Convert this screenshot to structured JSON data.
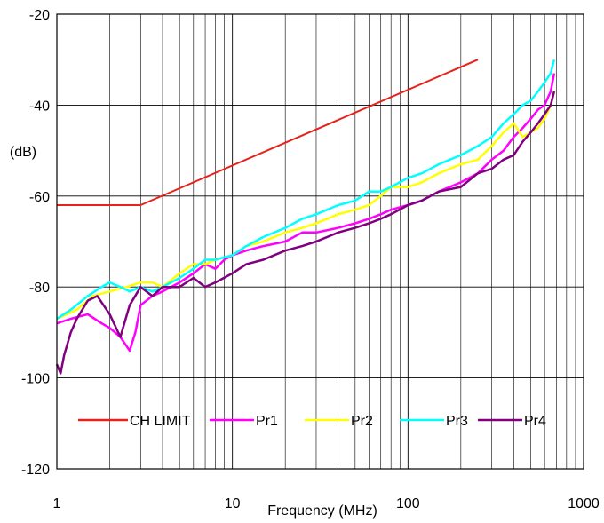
{
  "chart_data": {
    "type": "line",
    "xscale": "log",
    "xlim": [
      1,
      1000
    ],
    "ylim": [
      -120,
      -20
    ],
    "xlabel": "Frequency (MHz)",
    "ylabel": "(dB)",
    "xticks": [
      "1",
      "10",
      "100",
      "1000"
    ],
    "yticks": [
      "-20",
      "-40",
      "-60",
      "-80",
      "-100",
      "-120"
    ],
    "grid": true,
    "legend_position": "bottom-inside",
    "series": [
      {
        "name": "CH LIMIT",
        "color": "#e8211b",
        "x": [
          1,
          3,
          250
        ],
        "y": [
          -62,
          -62,
          -30
        ]
      },
      {
        "name": "Pr1",
        "color": "#ff00ff",
        "x": [
          1,
          1.2,
          1.5,
          1.8,
          2,
          2.3,
          2.6,
          2.8,
          3,
          3.5,
          4,
          5,
          6,
          7,
          8,
          9,
          10,
          12,
          15,
          20,
          25,
          30,
          40,
          50,
          60,
          70,
          80,
          100,
          120,
          150,
          200,
          250,
          300,
          350,
          400,
          450,
          500,
          550,
          600,
          650,
          680
        ],
        "y": [
          -88,
          -87,
          -86,
          -88,
          -89,
          -91,
          -94,
          -90,
          -84,
          -82,
          -81,
          -79,
          -77,
          -75,
          -76,
          -74,
          -73,
          -72,
          -71,
          -70,
          -68,
          -68,
          -67,
          -66,
          -65,
          -64,
          -63,
          -62,
          -61,
          -59,
          -57,
          -55,
          -52,
          -50,
          -47,
          -45,
          -43,
          -41,
          -40,
          -37,
          -33
        ]
      },
      {
        "name": "Pr2",
        "color": "#ffff00",
        "x": [
          1,
          1.3,
          1.6,
          2,
          2.5,
          3,
          3.5,
          4,
          5,
          6,
          7,
          8,
          10,
          12,
          15,
          20,
          25,
          30,
          40,
          50,
          60,
          70,
          80,
          100,
          120,
          150,
          200,
          250,
          300,
          350,
          400,
          450,
          500,
          550,
          600,
          650,
          680
        ],
        "y": [
          -87,
          -85,
          -82,
          -81,
          -80,
          -79,
          -79,
          -80,
          -77,
          -75,
          -75,
          -74,
          -73,
          -71,
          -70,
          -68,
          -67,
          -66,
          -64,
          -63,
          -62,
          -60,
          -58,
          -58,
          -57,
          -55,
          -53,
          -52,
          -49,
          -46,
          -44,
          -47,
          -46,
          -45,
          -43,
          -40,
          -37
        ]
      },
      {
        "name": "Pr3",
        "color": "#00ffff",
        "x": [
          1,
          1.2,
          1.5,
          1.8,
          2,
          2.3,
          2.6,
          3,
          3.5,
          4,
          5,
          6,
          7,
          8,
          10,
          12,
          15,
          20,
          25,
          30,
          40,
          50,
          60,
          70,
          80,
          100,
          120,
          150,
          200,
          250,
          300,
          350,
          400,
          450,
          500,
          550,
          600,
          650,
          680
        ],
        "y": [
          -87,
          -85,
          -82,
          -80,
          -79,
          -80,
          -81,
          -80,
          -81,
          -80,
          -78,
          -76,
          -74,
          -74,
          -73,
          -71,
          -69,
          -67,
          -65,
          -64,
          -62,
          -61,
          -59,
          -59,
          -58,
          -56,
          -55,
          -53,
          -51,
          -49,
          -47,
          -44,
          -42,
          -40,
          -39,
          -37,
          -35,
          -33,
          -30
        ]
      },
      {
        "name": "Pr4",
        "color": "#800080",
        "x": [
          1,
          1.05,
          1.1,
          1.2,
          1.3,
          1.5,
          1.7,
          2,
          2.3,
          2.6,
          3,
          3.5,
          4,
          5,
          6,
          7,
          8,
          10,
          12,
          15,
          20,
          25,
          30,
          40,
          50,
          60,
          70,
          80,
          100,
          120,
          150,
          200,
          250,
          300,
          350,
          400,
          450,
          500,
          550,
          600,
          650,
          680
        ],
        "y": [
          -97,
          -99,
          -95,
          -90,
          -87,
          -83,
          -82,
          -86,
          -91,
          -84,
          -80,
          -82,
          -80,
          -80,
          -78,
          -80,
          -79,
          -77,
          -75,
          -74,
          -72,
          -71,
          -70,
          -68,
          -67,
          -66,
          -65,
          -64,
          -62,
          -61,
          -59,
          -58,
          -55,
          -54,
          -52,
          -51,
          -48,
          -46,
          -44,
          -42,
          -40,
          -37
        ]
      }
    ]
  }
}
